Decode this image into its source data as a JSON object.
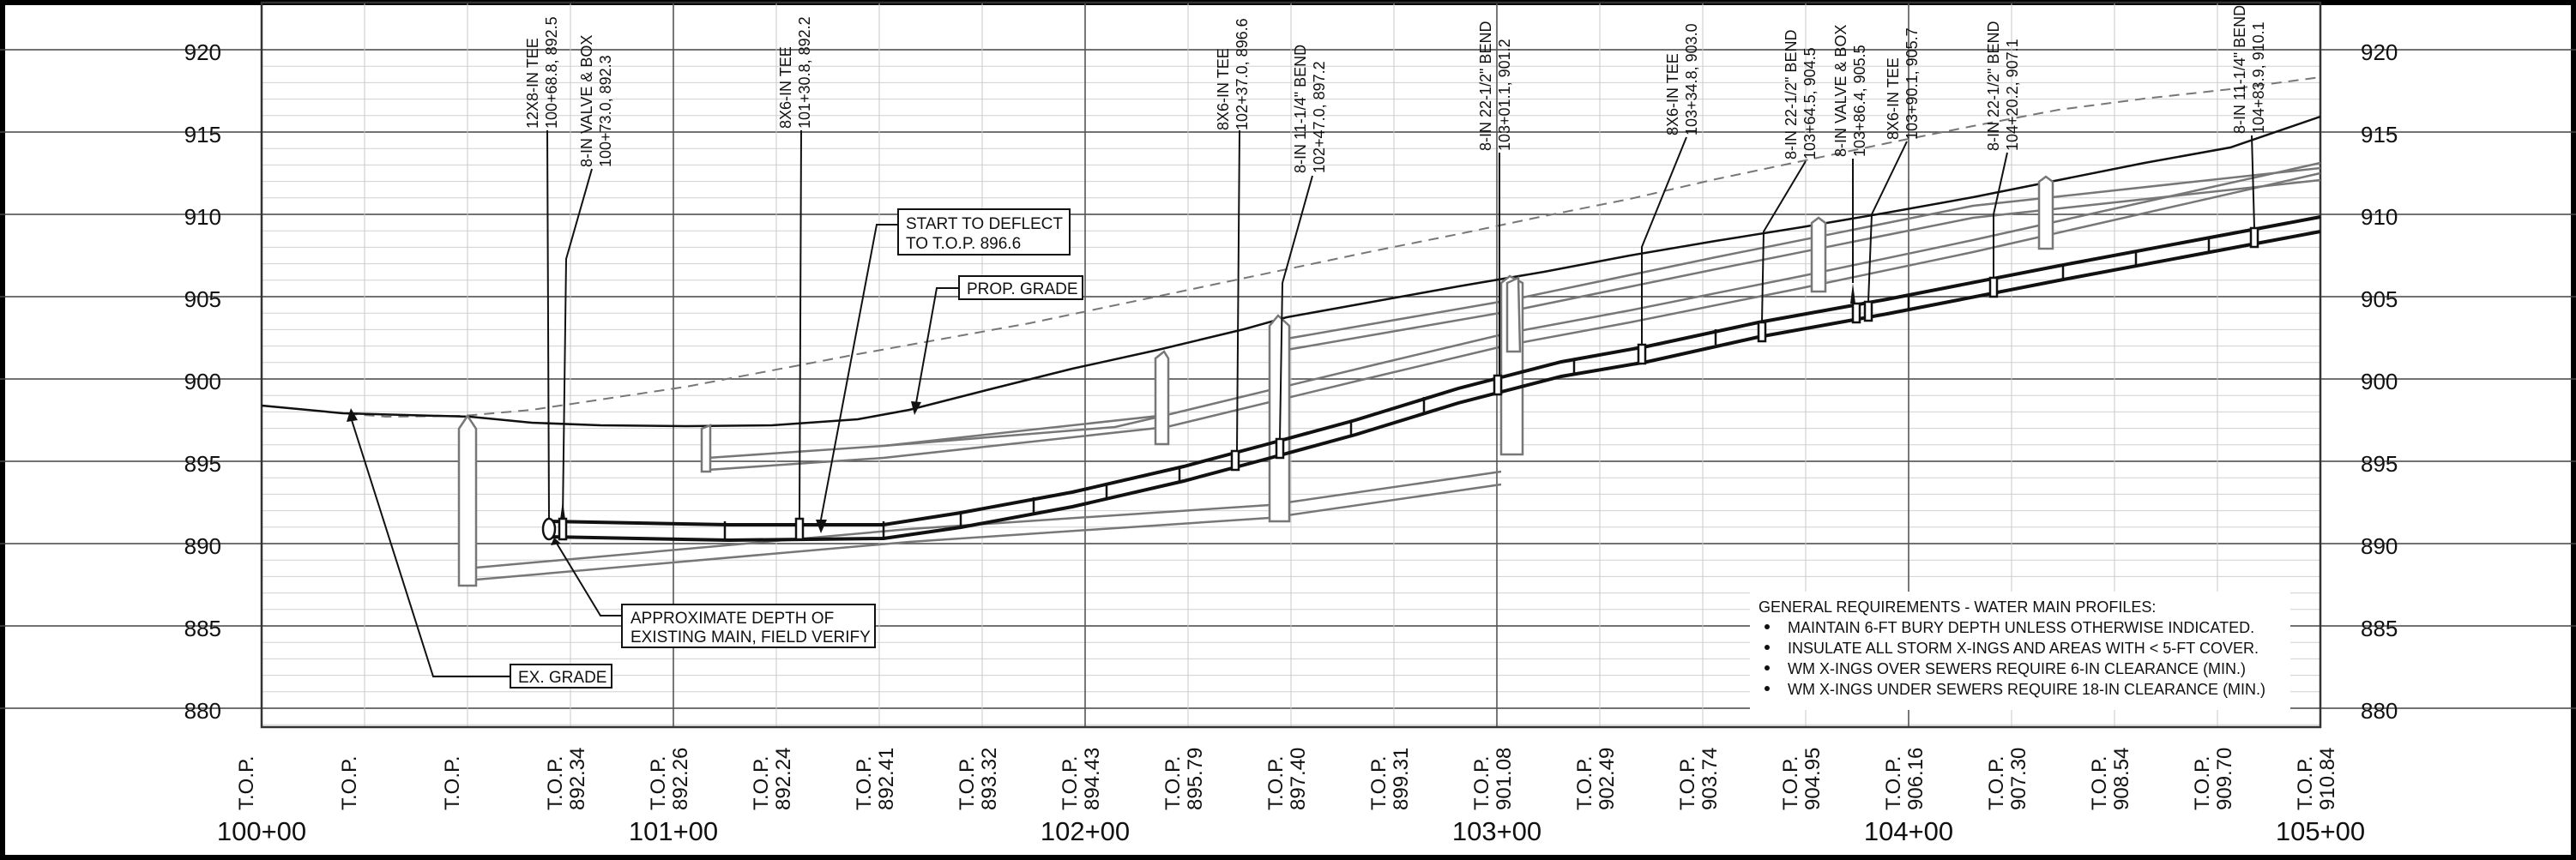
{
  "sheet": {
    "elevations": [
      "920",
      "915",
      "910",
      "905",
      "900",
      "895",
      "890",
      "885",
      "880"
    ],
    "stations": [
      "100+00",
      "101+00",
      "102+00",
      "103+00",
      "104+00",
      "105+00"
    ],
    "top_labels": [
      {
        "label": "T.O.P.",
        "value": ""
      },
      {
        "label": "T.O.P.",
        "value": ""
      },
      {
        "label": "T.O.P.",
        "value": ""
      },
      {
        "label": "T.O.P.",
        "value": "892.34"
      },
      {
        "label": "T.O.P.",
        "value": "892.26"
      },
      {
        "label": "T.O.P.",
        "value": "892.24"
      },
      {
        "label": "T.O.P.",
        "value": "892.41"
      },
      {
        "label": "T.O.P.",
        "value": "893.32"
      },
      {
        "label": "T.O.P.",
        "value": "894.43"
      },
      {
        "label": "T.O.P.",
        "value": "895.79"
      },
      {
        "label": "T.O.P.",
        "value": "897.40"
      },
      {
        "label": "T.O.P.",
        "value": "899.31"
      },
      {
        "label": "T.O.P.",
        "value": "901.08"
      },
      {
        "label": "T.O.P.",
        "value": "902.49"
      },
      {
        "label": "T.O.P.",
        "value": "903.74"
      },
      {
        "label": "T.O.P.",
        "value": "904.95"
      },
      {
        "label": "T.O.P.",
        "value": "906.16"
      },
      {
        "label": "T.O.P.",
        "value": "907.30"
      },
      {
        "label": "T.O.P.",
        "value": "908.54"
      },
      {
        "label": "T.O.P.",
        "value": "909.70"
      },
      {
        "label": "T.O.P.",
        "value": "910.84"
      }
    ],
    "fittings": [
      {
        "name": "12X8-IN TEE",
        "sta_elev": "100+68.8, 892.5"
      },
      {
        "name": "8-IN VALVE & BOX",
        "sta_elev": "100+73.0, 892.3"
      },
      {
        "name": "8X6-IN TEE",
        "sta_elev": "101+30.8, 892.2"
      },
      {
        "name": "8X6-IN TEE",
        "sta_elev": "102+37.0, 896.6"
      },
      {
        "name": "8-IN 11-1/4\" BEND",
        "sta_elev": "102+47.0, 897.2"
      },
      {
        "name": "8-IN 22-1/2\" BEND",
        "sta_elev": "103+01.1, 901.2"
      },
      {
        "name": "8X6-IN TEE",
        "sta_elev": "103+34.8, 903.0"
      },
      {
        "name": "8-IN 22-1/2\" BEND",
        "sta_elev": "103+64.5, 904.5"
      },
      {
        "name": "8-IN VALVE & BOX",
        "sta_elev": "103+86.4, 905.5"
      },
      {
        "name": "8X6-IN TEE",
        "sta_elev": "103+90.1, 905.7"
      },
      {
        "name": "8-IN 22-1/2\" BEND",
        "sta_elev": "104+20.2, 907.1"
      },
      {
        "name": "8-IN 11-1/4\" BEND",
        "sta_elev": "104+83.9, 910.1"
      }
    ],
    "callouts": {
      "deflect_1": "START TO DEFLECT",
      "deflect_2": "TO T.O.P. 896.6",
      "prop_grade": "PROP. GRADE",
      "approx_1": "APPROXIMATE DEPTH OF",
      "approx_2": "EXISTING MAIN, FIELD VERIFY",
      "ex_grade": "EX. GRADE"
    },
    "general": {
      "title": "GENERAL REQUIREMENTS - WATER MAIN PROFILES:",
      "items": [
        "MAINTAIN 6-FT BURY DEPTH UNLESS OTHERWISE INDICATED.",
        "INSULATE ALL STORM X-INGS AND AREAS WITH < 5-FT COVER.",
        "WM X-INGS OVER SEWERS REQUIRE 6-IN CLEARANCE (MIN.)",
        "WM X-INGS UNDER SEWERS REQUIRE 18-IN CLEARANCE (MIN.)"
      ]
    }
  }
}
